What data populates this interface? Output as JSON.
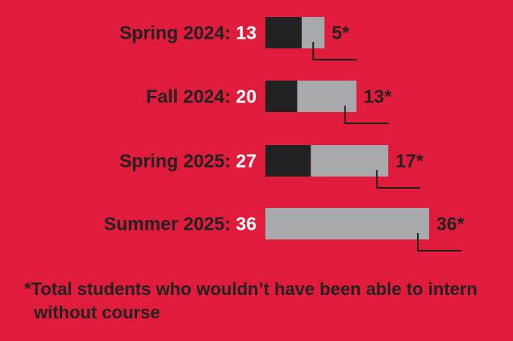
{
  "colors": {
    "background": "#e01b3c",
    "dark_segment": "#222222",
    "gray_segment": "#a7a9ac",
    "text_dark": "#222222",
    "text_light": "#ffffff"
  },
  "chart_data": {
    "type": "bar",
    "orientation": "horizontal",
    "stacked": true,
    "categories": [
      "Spring 2024",
      "Fall 2024",
      "Spring 2025",
      "Summer 2025"
    ],
    "category_labels": [
      "Spring 2024:",
      "Fall 2024:",
      "Spring 2025:",
      "Summer 2025:"
    ],
    "totals": [
      13,
      20,
      27,
      36
    ],
    "series": [
      {
        "values": [
          8,
          7,
          10,
          0
        ],
        "color": "#222222"
      },
      {
        "values": [
          5,
          13,
          17,
          36
        ],
        "color": "#a7a9ac"
      }
    ],
    "starred_labels": [
      "5*",
      "13*",
      "17*",
      "36*"
    ],
    "xlim": [
      0,
      36
    ],
    "grid": false,
    "legend": "none"
  },
  "footnote": {
    "line1": "*Total students who wouldn’t have been able to intern",
    "line2": "without course"
  }
}
